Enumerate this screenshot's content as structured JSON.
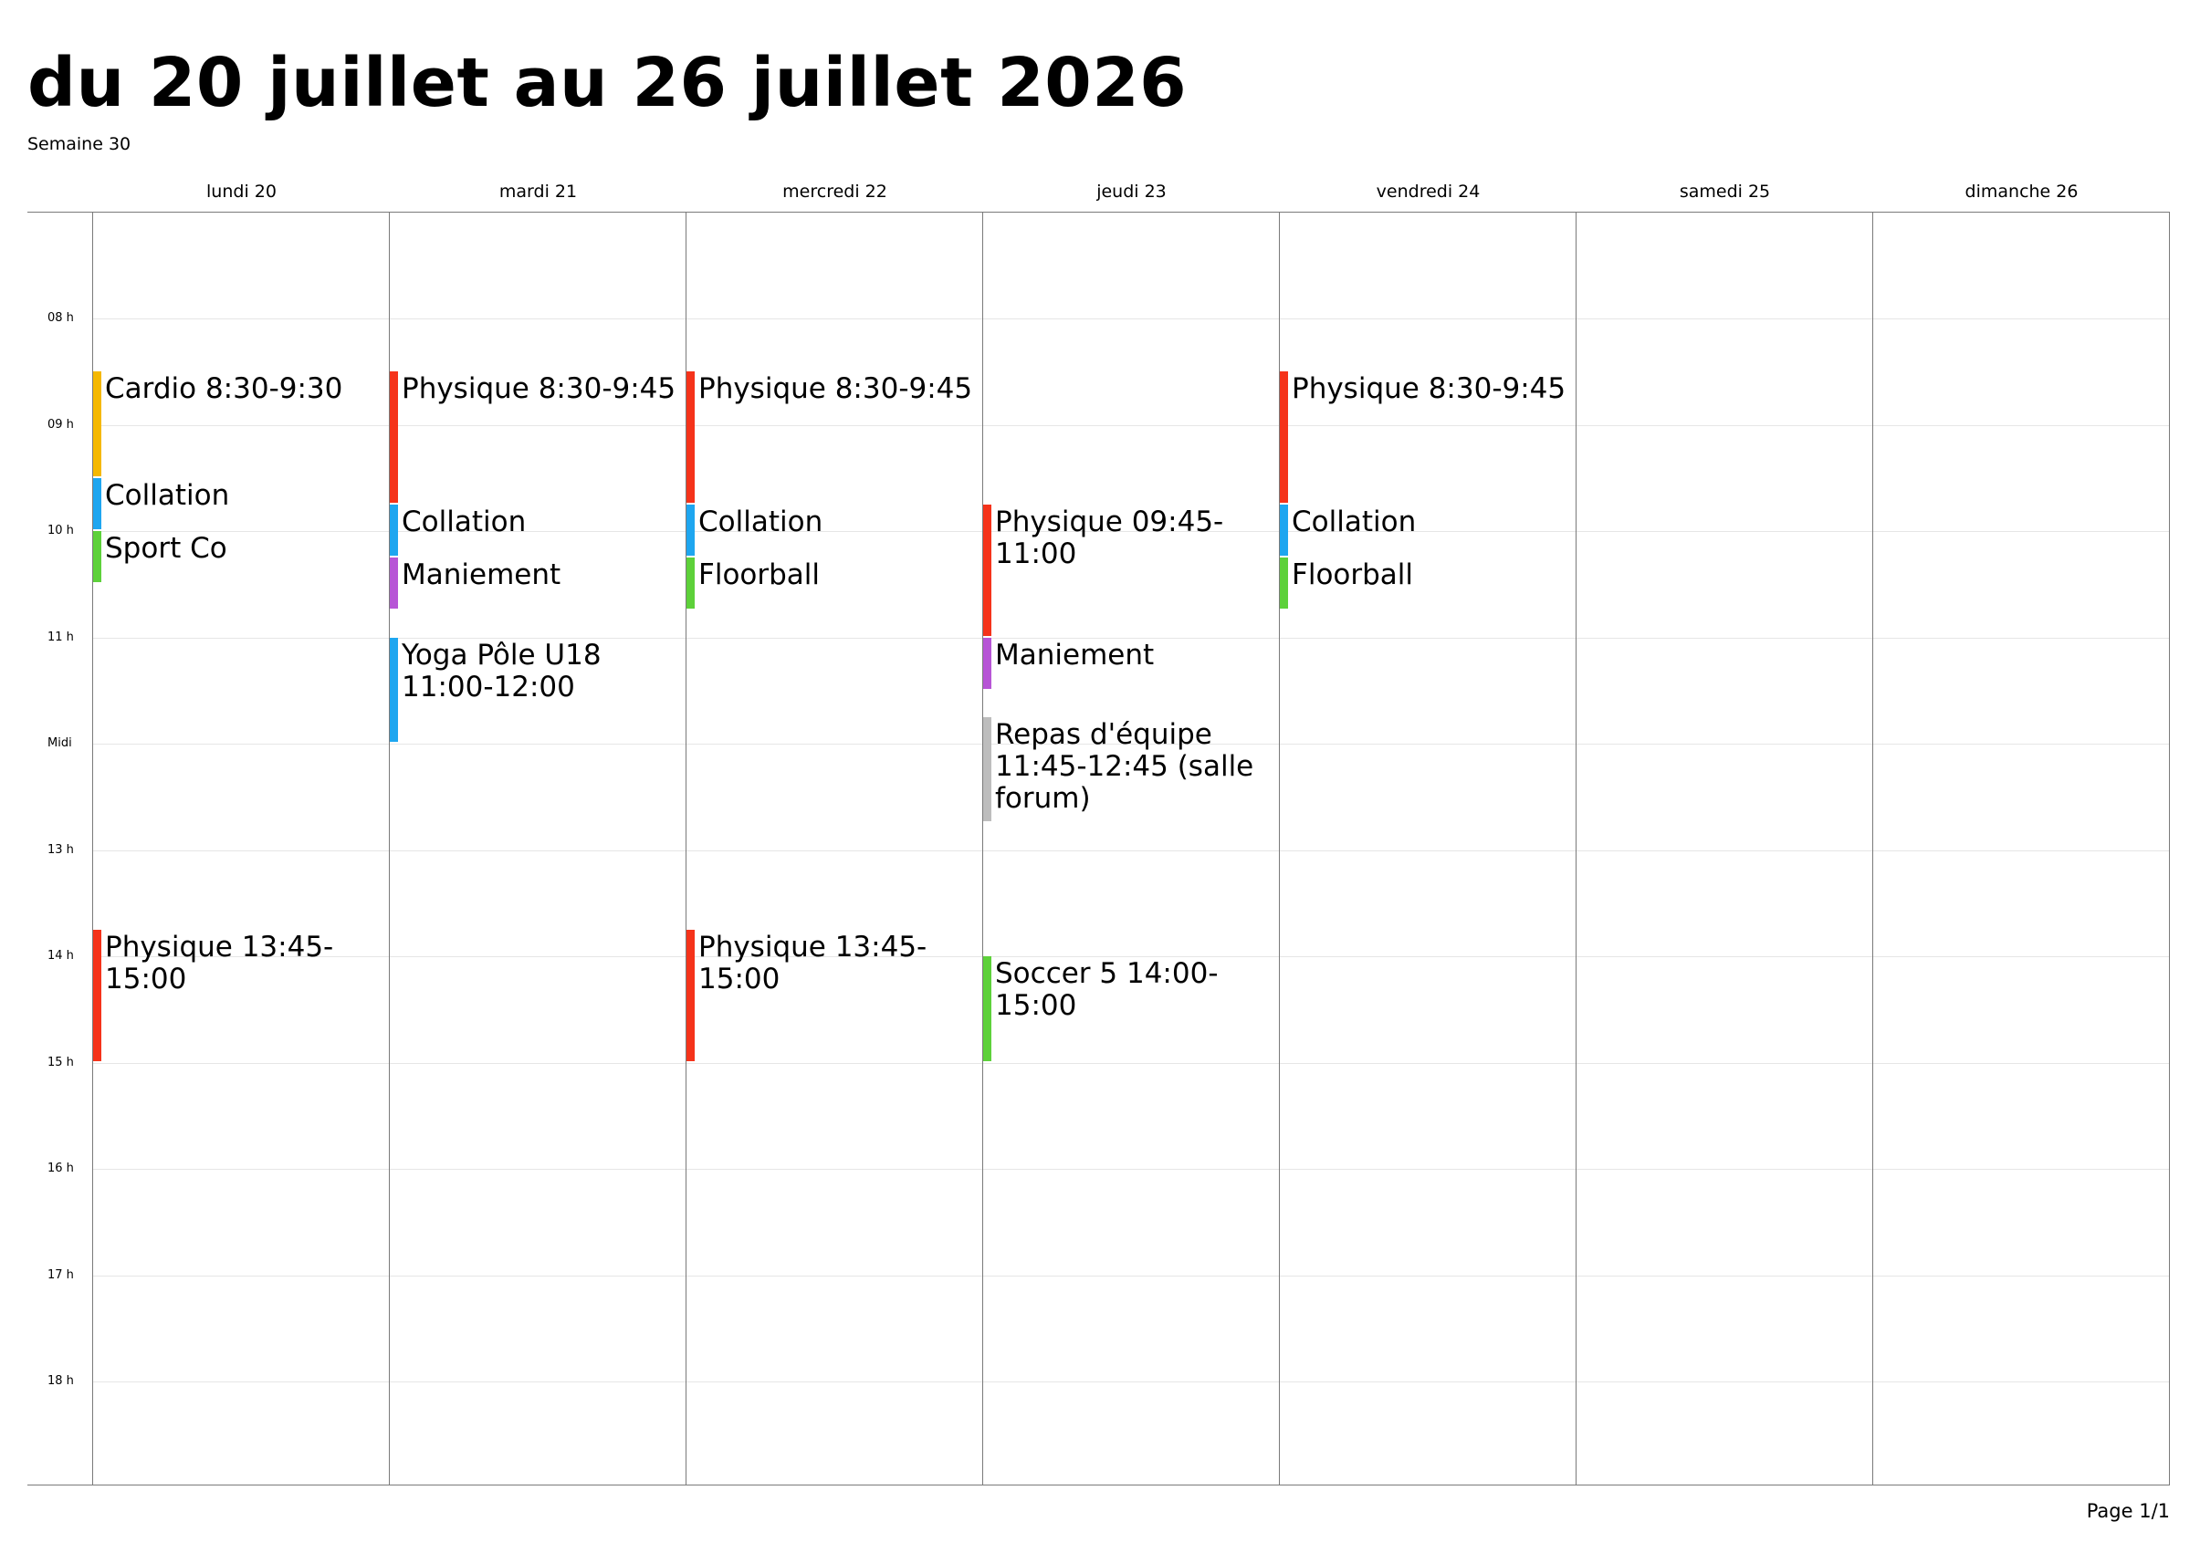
{
  "header": {
    "title": "du 20 juillet au 26 juillet 2026",
    "week": "Semaine 30"
  },
  "days": [
    {
      "label": "lundi 20"
    },
    {
      "label": "mardi 21"
    },
    {
      "label": "mercredi 22"
    },
    {
      "label": "jeudi 23"
    },
    {
      "label": "vendredi 24"
    },
    {
      "label": "samedi 25"
    },
    {
      "label": "dimanche 26"
    }
  ],
  "hours": [
    {
      "hour": 8,
      "label": "08 h"
    },
    {
      "hour": 9,
      "label": "09 h"
    },
    {
      "hour": 10,
      "label": "10 h"
    },
    {
      "hour": 11,
      "label": "11 h"
    },
    {
      "hour": 12,
      "label": "Midi"
    },
    {
      "hour": 13,
      "label": "13 h"
    },
    {
      "hour": 14,
      "label": "14 h"
    },
    {
      "hour": 15,
      "label": "15 h"
    },
    {
      "hour": 16,
      "label": "16 h"
    },
    {
      "hour": 17,
      "label": "17 h"
    },
    {
      "hour": 18,
      "label": "18 h"
    }
  ],
  "events": [
    {
      "day": 0,
      "start": "08:30",
      "end": "09:30",
      "label": "Cardio 8:30-9:30",
      "color": "#f5b800"
    },
    {
      "day": 0,
      "start": "09:30",
      "end": "10:00",
      "label": "Collation",
      "color": "#1ea6f0"
    },
    {
      "day": 0,
      "start": "10:00",
      "end": "10:30",
      "label": "Sport Co",
      "color": "#5dd13a"
    },
    {
      "day": 0,
      "start": "13:45",
      "end": "15:00",
      "label": "Physique 13:45-15:00",
      "color": "#f5331a"
    },
    {
      "day": 1,
      "start": "08:30",
      "end": "09:45",
      "label": "Physique 8:30-9:45",
      "color": "#f5331a"
    },
    {
      "day": 1,
      "start": "09:45",
      "end": "10:15",
      "label": "Collation",
      "color": "#1ea6f0"
    },
    {
      "day": 1,
      "start": "10:15",
      "end": "10:45",
      "label": "Maniement",
      "color": "#b755d6"
    },
    {
      "day": 1,
      "start": "11:00",
      "end": "12:00",
      "label": "Yoga Pôle U18 11:00-12:00",
      "color": "#1ea6f0"
    },
    {
      "day": 2,
      "start": "08:30",
      "end": "09:45",
      "label": "Physique 8:30-9:45",
      "color": "#f5331a"
    },
    {
      "day": 2,
      "start": "09:45",
      "end": "10:15",
      "label": "Collation",
      "color": "#1ea6f0"
    },
    {
      "day": 2,
      "start": "10:15",
      "end": "10:45",
      "label": "Floorball",
      "color": "#5dd13a"
    },
    {
      "day": 2,
      "start": "13:45",
      "end": "15:00",
      "label": "Physique 13:45-15:00",
      "color": "#f5331a"
    },
    {
      "day": 3,
      "start": "09:45",
      "end": "11:00",
      "label": "Physique 09:45-11:00",
      "color": "#f5331a"
    },
    {
      "day": 3,
      "start": "11:00",
      "end": "11:30",
      "label": "Maniement",
      "color": "#b755d6"
    },
    {
      "day": 3,
      "start": "11:45",
      "end": "12:45",
      "label": "Repas d'équipe 11:45-12:45 (salle forum)",
      "color": "#bdbdbd"
    },
    {
      "day": 3,
      "start": "14:00",
      "end": "15:00",
      "label": "Soccer 5 14:00-15:00",
      "color": "#5dd13a"
    },
    {
      "day": 4,
      "start": "08:30",
      "end": "09:45",
      "label": "Physique 8:30-9:45",
      "color": "#f5331a"
    },
    {
      "day": 4,
      "start": "09:45",
      "end": "10:15",
      "label": "Collation",
      "color": "#1ea6f0"
    },
    {
      "day": 4,
      "start": "10:15",
      "end": "10:45",
      "label": "Floorball",
      "color": "#5dd13a"
    }
  ],
  "footer": {
    "page": "Page 1/1"
  }
}
